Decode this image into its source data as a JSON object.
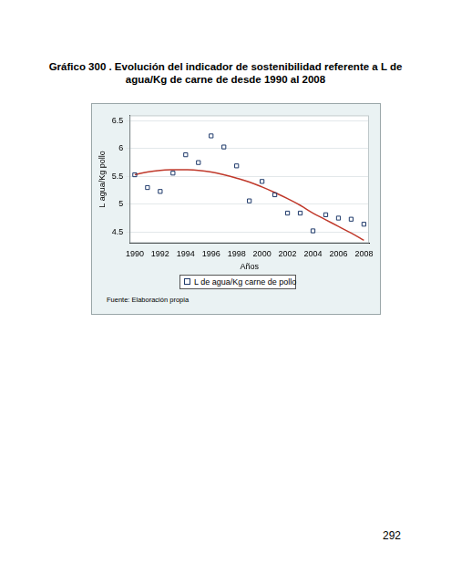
{
  "chart_data": {
    "type": "scatter",
    "title": "Gráfico 300 . Evolución  del indicador de sostenibilidad referente a L de agua/Kg de carne de desde 1990 al 2008",
    "x_label": "Años",
    "y_label": "L agua/Kg pollo",
    "x": [
      1990,
      1991,
      1992,
      1993,
      1994,
      1995,
      1996,
      1997,
      1998,
      1999,
      2000,
      2001,
      2002,
      2003,
      2004,
      2005,
      2006,
      2007,
      2008
    ],
    "series": [
      {
        "name": "L de agua/Kg carne de pollo",
        "color": "#1f3a6b",
        "marker": "square",
        "values": [
          5.53,
          5.3,
          5.23,
          5.56,
          5.89,
          5.75,
          6.23,
          6.03,
          5.69,
          5.06,
          5.41,
          5.17,
          4.84,
          4.84,
          4.52,
          4.81,
          4.75,
          4.73,
          4.64
        ]
      },
      {
        "type": "line",
        "color": "#c0392b",
        "line_style": "solid",
        "values": [
          5.53,
          5.58,
          5.61,
          5.62,
          5.62,
          5.61,
          5.58,
          5.53,
          5.47,
          5.4,
          5.31,
          5.21,
          5.1,
          4.98,
          4.84,
          4.72,
          4.6,
          4.48,
          4.35
        ]
      }
    ],
    "xlim": [
      1989.6,
      2008.4
    ],
    "ylim": [
      4.3,
      6.6
    ],
    "xticks": [
      1990,
      1992,
      1994,
      1996,
      1998,
      2000,
      2002,
      2004,
      2006,
      2008
    ],
    "yticks": [
      4.5,
      5,
      5.5,
      6,
      6.5
    ],
    "grid": true,
    "legend": "bottom",
    "annotations": [
      "Fuente: Elaboración propia"
    ]
  },
  "page_number": 292
}
